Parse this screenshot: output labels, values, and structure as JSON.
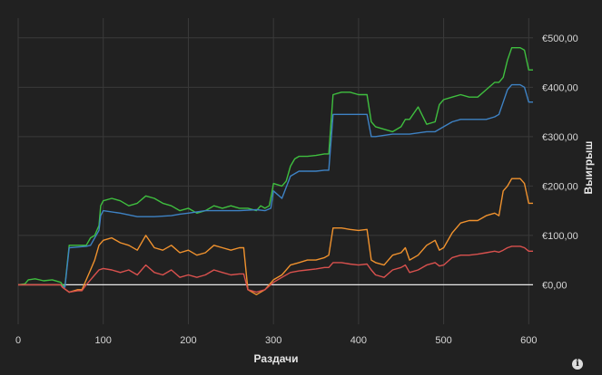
{
  "chart_data": {
    "type": "line",
    "xlabel": "Раздачи",
    "ylabel": "Выигрыш",
    "xlim": [
      0,
      605
    ],
    "ylim": [
      -80,
      540
    ],
    "x_ticks": [
      0,
      100,
      200,
      300,
      400,
      500,
      600
    ],
    "x_tick_labels": [
      "0",
      "100",
      "200",
      "300",
      "400",
      "500",
      "600"
    ],
    "y_ticks": [
      0,
      100,
      200,
      300,
      400,
      500
    ],
    "y_tick_labels": [
      "€0,00",
      "€100,00",
      "€200,00",
      "€300,00",
      "€400,00",
      "€500,00"
    ],
    "grid": true,
    "y_axis_side": "right",
    "zero_line_color": "#e8e8e8",
    "series": [
      {
        "color": "#3fbf3f",
        "x": [
          0,
          8,
          12,
          20,
          30,
          40,
          50,
          52,
          55,
          60,
          70,
          80,
          85,
          90,
          95,
          97,
          100,
          110,
          120,
          130,
          140,
          150,
          160,
          170,
          180,
          190,
          200,
          210,
          220,
          230,
          240,
          250,
          260,
          270,
          280,
          285,
          290,
          295,
          298,
          300,
          310,
          315,
          320,
          325,
          330,
          340,
          350,
          360,
          365,
          370,
          380,
          390,
          400,
          410,
          415,
          420,
          430,
          440,
          450,
          455,
          460,
          470,
          480,
          490,
          495,
          500,
          510,
          520,
          530,
          540,
          550,
          560,
          565,
          570,
          575,
          580,
          590,
          595,
          600,
          605
        ],
        "values": [
          0,
          2,
          10,
          12,
          8,
          10,
          5,
          0,
          -3,
          80,
          80,
          80,
          95,
          100,
          120,
          160,
          170,
          175,
          170,
          160,
          165,
          180,
          175,
          165,
          160,
          150,
          155,
          145,
          150,
          160,
          155,
          160,
          155,
          155,
          150,
          160,
          155,
          160,
          185,
          205,
          200,
          210,
          240,
          255,
          260,
          260,
          262,
          265,
          265,
          385,
          390,
          390,
          385,
          385,
          330,
          320,
          315,
          310,
          320,
          335,
          335,
          360,
          325,
          330,
          365,
          375,
          380,
          385,
          380,
          380,
          395,
          410,
          410,
          420,
          455,
          480,
          480,
          475,
          435,
          435
        ]
      },
      {
        "color": "#3e82c4",
        "x": [
          0,
          50,
          52,
          55,
          60,
          80,
          85,
          95,
          97,
          100,
          120,
          140,
          160,
          180,
          190,
          200,
          220,
          240,
          260,
          280,
          290,
          297,
          300,
          310,
          320,
          330,
          340,
          350,
          360,
          365,
          370,
          380,
          390,
          400,
          410,
          415,
          420,
          440,
          460,
          480,
          490,
          500,
          510,
          520,
          530,
          540,
          550,
          560,
          565,
          570,
          575,
          580,
          590,
          595,
          600,
          605
        ],
        "values": [
          0,
          0,
          -3,
          -5,
          75,
          78,
          80,
          110,
          140,
          150,
          145,
          138,
          138,
          140,
          143,
          145,
          150,
          150,
          150,
          152,
          150,
          155,
          190,
          175,
          220,
          230,
          230,
          230,
          232,
          232,
          345,
          345,
          345,
          345,
          345,
          300,
          300,
          305,
          305,
          310,
          310,
          320,
          330,
          335,
          335,
          335,
          335,
          340,
          345,
          370,
          395,
          405,
          405,
          400,
          370,
          370
        ]
      },
      {
        "color": "#f0922e",
        "x": [
          0,
          50,
          52,
          60,
          70,
          75,
          80,
          85,
          90,
          95,
          100,
          110,
          120,
          130,
          140,
          150,
          160,
          170,
          180,
          190,
          200,
          210,
          220,
          230,
          240,
          250,
          260,
          265,
          270,
          280,
          290,
          300,
          310,
          320,
          330,
          340,
          350,
          360,
          365,
          370,
          380,
          390,
          400,
          410,
          415,
          420,
          430,
          440,
          450,
          455,
          460,
          470,
          480,
          490,
          495,
          500,
          510,
          520,
          530,
          540,
          550,
          560,
          565,
          570,
          575,
          580,
          590,
          595,
          600,
          605
        ],
        "values": [
          0,
          0,
          -5,
          -15,
          -10,
          -10,
          10,
          30,
          50,
          80,
          90,
          95,
          85,
          80,
          70,
          100,
          75,
          70,
          80,
          65,
          70,
          60,
          65,
          80,
          75,
          70,
          75,
          75,
          -10,
          -20,
          -10,
          10,
          20,
          40,
          45,
          50,
          50,
          55,
          60,
          115,
          115,
          112,
          110,
          112,
          50,
          45,
          40,
          60,
          65,
          75,
          50,
          60,
          80,
          90,
          70,
          75,
          105,
          125,
          130,
          130,
          140,
          145,
          140,
          190,
          200,
          215,
          215,
          205,
          165,
          165
        ]
      },
      {
        "color": "#d9514e",
        "x": [
          0,
          50,
          52,
          60,
          70,
          75,
          80,
          85,
          90,
          95,
          100,
          110,
          120,
          130,
          140,
          150,
          160,
          170,
          180,
          190,
          200,
          210,
          220,
          230,
          240,
          250,
          260,
          265,
          270,
          280,
          290,
          300,
          310,
          320,
          330,
          340,
          350,
          360,
          365,
          370,
          380,
          390,
          400,
          410,
          415,
          420,
          430,
          440,
          450,
          455,
          460,
          470,
          480,
          490,
          495,
          500,
          510,
          520,
          530,
          540,
          550,
          560,
          565,
          570,
          575,
          580,
          590,
          595,
          600,
          605
        ],
        "values": [
          0,
          0,
          -5,
          -15,
          -12,
          -12,
          0,
          10,
          20,
          30,
          33,
          30,
          25,
          30,
          20,
          40,
          25,
          20,
          30,
          15,
          20,
          15,
          20,
          30,
          25,
          20,
          22,
          22,
          -10,
          -15,
          -10,
          5,
          15,
          25,
          28,
          30,
          32,
          35,
          35,
          45,
          45,
          42,
          40,
          42,
          30,
          20,
          15,
          30,
          35,
          40,
          25,
          30,
          40,
          45,
          38,
          40,
          55,
          60,
          60,
          62,
          65,
          68,
          66,
          70,
          75,
          78,
          78,
          75,
          68,
          68
        ]
      }
    ]
  },
  "ui": {
    "info_icon": "info-icon",
    "info_glyph": "i"
  }
}
